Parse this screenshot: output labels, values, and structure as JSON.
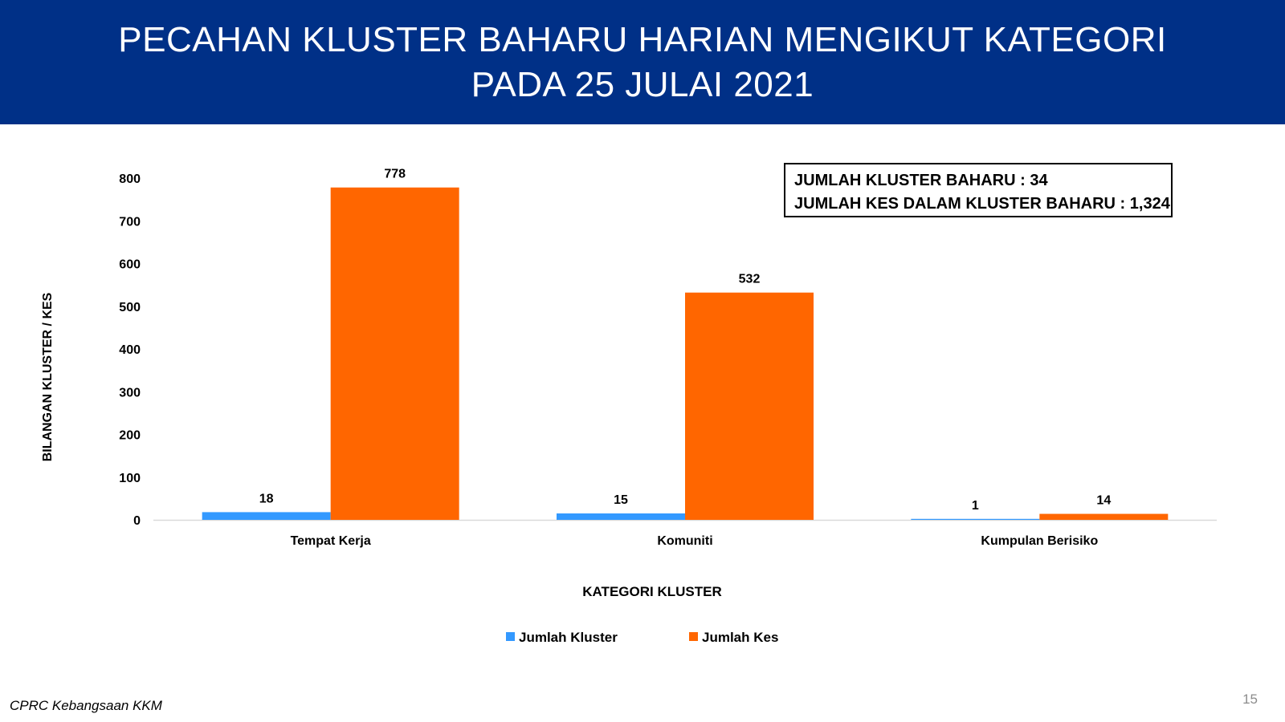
{
  "header": {
    "title_line1": "PECAHAN KLUSTER BAHARU HARIAN MENGIKUT KATEGORI",
    "title_line2": "PADA 25 JULAI 2021"
  },
  "summary": {
    "line1": "JUMLAH KLUSTER BAHARU : 34",
    "line2": "JUMLAH KES DALAM KLUSTER BAHARU : 1,324"
  },
  "footer": {
    "source": "CPRC Kebangsaan KKM",
    "page_number": "15"
  },
  "chart_data": {
    "type": "bar",
    "categories": [
      "Tempat Kerja",
      "Komuniti",
      "Kumpulan Berisiko"
    ],
    "series": [
      {
        "name": "Jumlah Kluster",
        "values": [
          18,
          15,
          1
        ],
        "color": "#3399ff"
      },
      {
        "name": "Jumlah Kes",
        "values": [
          778,
          532,
          14
        ],
        "color": "#ff6600"
      }
    ],
    "xlabel": "KATEGORI KLUSTER",
    "ylabel": "BILANGAN KLUSTER / KES",
    "ylim": [
      0,
      800
    ],
    "yticks": [
      0,
      100,
      200,
      300,
      400,
      500,
      600,
      700,
      800
    ],
    "grid": false,
    "legend_position": "bottom",
    "data_labels": true
  }
}
